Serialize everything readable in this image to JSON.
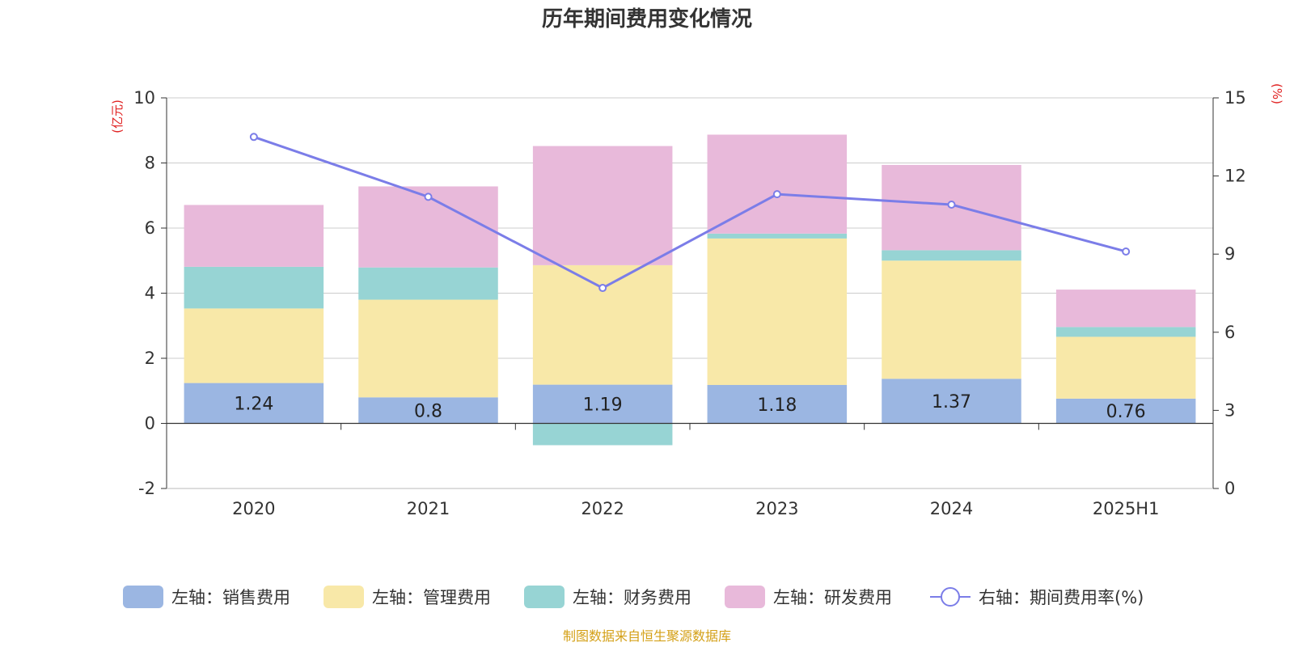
{
  "title": "历年期间费用变化情况",
  "source": "制图数据来自恒生聚源数据库",
  "colors": {
    "sales": "#9bb6e2",
    "admin": "#f8e8a8",
    "finance": "#97d4d4",
    "rd": "#e8b9da",
    "line": "#7b7de8"
  },
  "chart_data": {
    "type": "bar",
    "stacked": true,
    "categories": [
      "2020",
      "2021",
      "2022",
      "2023",
      "2024",
      "2025H1"
    ],
    "left_axis": {
      "unit": "(亿元)",
      "ylim": [
        -2,
        10
      ],
      "ticks": [
        -2,
        0,
        2,
        4,
        6,
        8,
        10
      ]
    },
    "right_axis": {
      "unit": "(%)",
      "ylim": [
        0,
        15
      ],
      "ticks": [
        0,
        3,
        6,
        9,
        12,
        15
      ]
    },
    "series": [
      {
        "name": "左轴：销售费用",
        "key": "sales",
        "axis": "left",
        "values": [
          1.24,
          0.8,
          1.19,
          1.18,
          1.37,
          0.76
        ],
        "labels": [
          "1.24",
          "0.8",
          "1.19",
          "1.18",
          "1.37",
          "0.76"
        ]
      },
      {
        "name": "左轴：管理费用",
        "key": "admin",
        "axis": "left",
        "values": [
          2.29,
          3.0,
          3.67,
          4.5,
          3.63,
          1.9
        ]
      },
      {
        "name": "左轴：财务费用",
        "key": "finance",
        "axis": "left",
        "values": [
          1.28,
          0.99,
          -0.67,
          0.15,
          0.32,
          0.3
        ]
      },
      {
        "name": "左轴：研发费用",
        "key": "rd",
        "axis": "left",
        "values": [
          1.9,
          2.49,
          3.66,
          3.04,
          2.62,
          1.15
        ]
      },
      {
        "name": "右轴：期间费用率(%)",
        "key": "line",
        "axis": "right",
        "type": "line",
        "values": [
          13.5,
          11.2,
          7.7,
          11.3,
          10.9,
          9.1
        ]
      }
    ],
    "grid": true,
    "legend": "bottom"
  }
}
